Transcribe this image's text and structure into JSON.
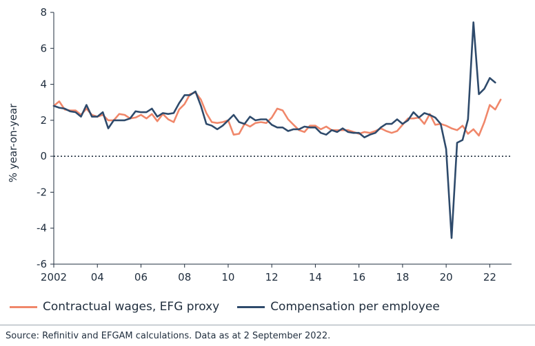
{
  "colors": {
    "wages": "#f0876a",
    "comp": "#2e4a6b",
    "axis": "#1f2d3d",
    "zero": "#1f2d3d"
  },
  "legend": {
    "wages_label": "Contractual wages, EFG proxy",
    "comp_label": "Compensation per employee"
  },
  "source": "Source: Refinitiv and EFGAM calculations. Data as at 2 September 2022.",
  "chart_data": {
    "type": "line",
    "title": "",
    "xlabel": "",
    "ylabel": "% year-on-year",
    "xlim": [
      2002.0,
      2023.0
    ],
    "ylim": [
      -6,
      8
    ],
    "yticks": [
      8,
      6,
      4,
      2,
      0,
      -2,
      -4,
      -6
    ],
    "xticks": [
      {
        "value": 2002,
        "label": "2002"
      },
      {
        "value": 2004,
        "label": "04"
      },
      {
        "value": 2006,
        "label": "06"
      },
      {
        "value": 2008,
        "label": "08"
      },
      {
        "value": 2010,
        "label": "10"
      },
      {
        "value": 2012,
        "label": "12"
      },
      {
        "value": 2014,
        "label": "14"
      },
      {
        "value": 2016,
        "label": "16"
      },
      {
        "value": 2018,
        "label": "18"
      },
      {
        "value": 2020,
        "label": "20"
      },
      {
        "value": 2022,
        "label": "22"
      }
    ],
    "zero_line": "dotted",
    "series": [
      {
        "name": "Contractual wages, EFG proxy",
        "color": "#f0876a",
        "x": [
          2002.0,
          2002.25,
          2002.5,
          2002.75,
          2003.0,
          2003.25,
          2003.5,
          2003.75,
          2004.0,
          2004.25,
          2004.5,
          2004.75,
          2005.0,
          2005.25,
          2005.5,
          2005.75,
          2006.0,
          2006.25,
          2006.5,
          2006.75,
          2007.0,
          2007.25,
          2007.5,
          2007.75,
          2008.0,
          2008.25,
          2008.5,
          2008.75,
          2009.0,
          2009.25,
          2009.5,
          2009.75,
          2010.0,
          2010.25,
          2010.5,
          2010.75,
          2011.0,
          2011.25,
          2011.5,
          2011.75,
          2012.0,
          2012.25,
          2012.5,
          2012.75,
          2013.0,
          2013.25,
          2013.5,
          2013.75,
          2014.0,
          2014.25,
          2014.5,
          2014.75,
          2015.0,
          2015.25,
          2015.5,
          2015.75,
          2016.0,
          2016.25,
          2016.5,
          2016.75,
          2017.0,
          2017.25,
          2017.5,
          2017.75,
          2018.0,
          2018.25,
          2018.5,
          2018.75,
          2019.0,
          2019.25,
          2019.5,
          2019.75,
          2020.0,
          2020.25,
          2020.5,
          2020.75,
          2021.0,
          2021.25,
          2021.5,
          2021.75,
          2022.0,
          2022.25,
          2022.5
        ],
        "values": [
          2.8,
          3.05,
          2.6,
          2.55,
          2.55,
          2.3,
          2.65,
          2.3,
          2.2,
          2.3,
          2.0,
          2.0,
          2.35,
          2.3,
          2.1,
          2.15,
          2.3,
          2.1,
          2.35,
          1.95,
          2.35,
          2.05,
          1.9,
          2.6,
          2.9,
          3.45,
          3.55,
          3.15,
          2.4,
          1.9,
          1.85,
          1.9,
          2.0,
          1.2,
          1.25,
          1.8,
          1.65,
          1.85,
          1.9,
          1.85,
          2.15,
          2.65,
          2.55,
          2.05,
          1.75,
          1.45,
          1.35,
          1.7,
          1.7,
          1.5,
          1.65,
          1.45,
          1.45,
          1.45,
          1.45,
          1.35,
          1.25,
          1.35,
          1.3,
          1.4,
          1.55,
          1.4,
          1.3,
          1.4,
          1.75,
          2.1,
          2.1,
          2.15,
          1.8,
          2.35,
          1.75,
          1.8,
          1.7,
          1.55,
          1.45,
          1.7,
          1.25,
          1.5,
          1.15,
          1.9,
          2.85,
          2.6,
          3.15
        ]
      },
      {
        "name": "Compensation per employee",
        "color": "#2e4a6b",
        "x": [
          2002.0,
          2002.25,
          2002.5,
          2002.75,
          2003.0,
          2003.25,
          2003.5,
          2003.75,
          2004.0,
          2004.25,
          2004.5,
          2004.75,
          2005.0,
          2005.25,
          2005.5,
          2005.75,
          2006.0,
          2006.25,
          2006.5,
          2006.75,
          2007.0,
          2007.25,
          2007.5,
          2007.75,
          2008.0,
          2008.25,
          2008.5,
          2008.75,
          2009.0,
          2009.25,
          2009.5,
          2009.75,
          2010.0,
          2010.25,
          2010.5,
          2010.75,
          2011.0,
          2011.25,
          2011.5,
          2011.75,
          2012.0,
          2012.25,
          2012.5,
          2012.75,
          2013.0,
          2013.25,
          2013.5,
          2013.75,
          2014.0,
          2014.25,
          2014.5,
          2014.75,
          2015.0,
          2015.25,
          2015.5,
          2015.75,
          2016.0,
          2016.25,
          2016.5,
          2016.75,
          2017.0,
          2017.25,
          2017.5,
          2017.75,
          2018.0,
          2018.25,
          2018.5,
          2018.75,
          2019.0,
          2019.25,
          2019.5,
          2019.75,
          2020.0,
          2020.25,
          2020.5,
          2020.75,
          2021.0,
          2021.25,
          2021.5,
          2021.75,
          2022.0,
          2022.25
        ],
        "values": [
          2.8,
          2.7,
          2.65,
          2.5,
          2.45,
          2.2,
          2.85,
          2.2,
          2.2,
          2.45,
          1.55,
          2.0,
          2.0,
          2.0,
          2.1,
          2.5,
          2.45,
          2.45,
          2.65,
          2.2,
          2.4,
          2.35,
          2.4,
          2.95,
          3.4,
          3.4,
          3.6,
          2.8,
          1.8,
          1.7,
          1.5,
          1.7,
          2.0,
          2.3,
          1.9,
          1.8,
          2.2,
          2.0,
          2.05,
          2.05,
          1.75,
          1.6,
          1.6,
          1.4,
          1.5,
          1.5,
          1.65,
          1.6,
          1.6,
          1.3,
          1.2,
          1.45,
          1.35,
          1.55,
          1.35,
          1.3,
          1.3,
          1.05,
          1.2,
          1.3,
          1.6,
          1.8,
          1.8,
          2.05,
          1.8,
          2.0,
          2.45,
          2.15,
          2.4,
          2.3,
          2.15,
          1.8,
          0.4,
          -4.55,
          0.75,
          0.9,
          2.05,
          7.45,
          3.45,
          3.75,
          4.35,
          4.1
        ]
      }
    ]
  }
}
